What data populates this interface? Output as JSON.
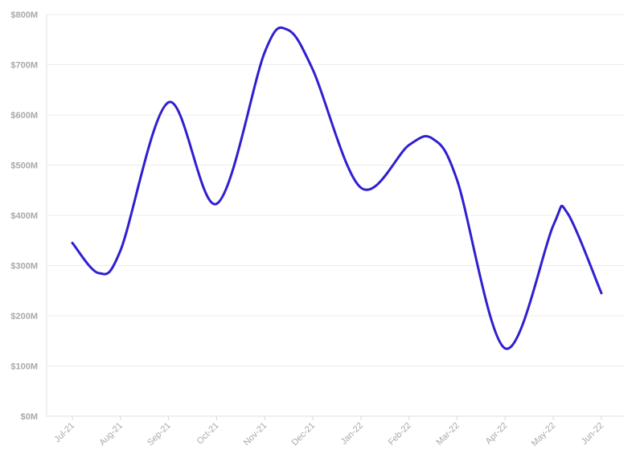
{
  "chart_data": {
    "type": "line",
    "categories": [
      "Jul-21",
      "Aug-21",
      "Sep-21",
      "Oct-21",
      "Nov-21",
      "Dec-21",
      "Jan-22",
      "Feb-22",
      "Mar-22",
      "Apr-22",
      "May-22",
      "Jun-22"
    ],
    "x": [
      "2021-07-01",
      "2021-07-18",
      "2021-08-01",
      "2021-09-01",
      "2021-10-01",
      "2021-11-01",
      "2021-11-15",
      "2021-12-01",
      "2022-01-01",
      "2022-02-01",
      "2022-02-15",
      "2022-03-01",
      "2022-04-01",
      "2022-05-01",
      "2022-05-10",
      "2022-06-01"
    ],
    "series": [
      {
        "values": [
          345,
          285,
          330,
          625,
          423,
          725,
          770,
          690,
          455,
          540,
          552,
          470,
          135,
          380,
          405,
          245
        ],
        "color": "#2f1fd0"
      }
    ],
    "yticks": [
      "$800M",
      "$700M",
      "$600M",
      "$500M",
      "$400M",
      "$300M",
      "$200M",
      "$100M",
      "$0M"
    ],
    "ylim": [
      0,
      800
    ],
    "unit": "$M",
    "grid": true,
    "legend": "none",
    "title": "",
    "xlabel": "",
    "ylabel": ""
  }
}
